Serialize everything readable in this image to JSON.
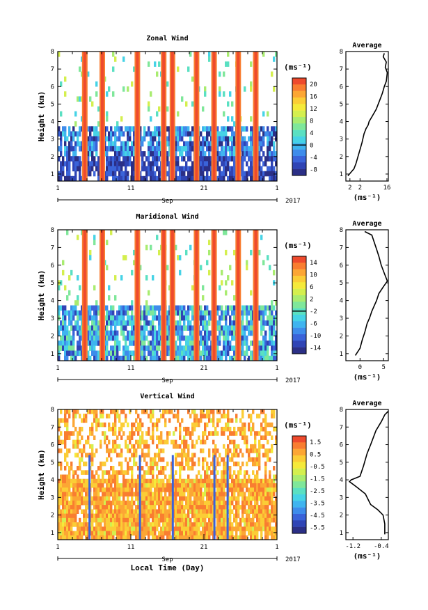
{
  "palette": [
    "#2b2f86",
    "#2f44b5",
    "#3a63d9",
    "#3e8ceb",
    "#3fb4ef",
    "#46d3e6",
    "#5ae0c2",
    "#7fe79a",
    "#a9ec70",
    "#d4ef4e",
    "#f5ea3a",
    "#fbcd36",
    "#fca634",
    "#f97d30",
    "#ee4a2d"
  ],
  "chart_data": [
    {
      "type": "heatmap",
      "title": "Zonal Wind",
      "ylabel": "Height (km)",
      "xlabel": "",
      "xticks": [
        "1",
        "11",
        "21",
        "1"
      ],
      "month_label": "Sep",
      "year_label": "2017",
      "yticks": [
        "1",
        "2",
        "3",
        "4",
        "5",
        "6",
        "7",
        "8"
      ],
      "ylim": [
        0.6,
        8
      ],
      "colorbar": {
        "unit": "(ms⁻¹)",
        "labels": [
          "20",
          "16",
          "12",
          "8",
          "4",
          "0",
          "-4",
          "-8"
        ],
        "line_index": 5
      },
      "average": {
        "title": "Average",
        "xlabel": "(ms⁻¹)",
        "xticks": [
          "2",
          "2",
          "16"
        ],
        "xlim": [
          -5,
          16
        ],
        "profile": [
          [
            -4,
            0.9
          ],
          [
            -1,
            1.3
          ],
          [
            0,
            1.6
          ],
          [
            1,
            2.0
          ],
          [
            2,
            2.4
          ],
          [
            3,
            2.8
          ],
          [
            4,
            3.3
          ],
          [
            5,
            3.6
          ],
          [
            6,
            3.8
          ],
          [
            6.5,
            4.0
          ],
          [
            8,
            4.3
          ],
          [
            10,
            4.7
          ],
          [
            11,
            5.0
          ],
          [
            12,
            5.3
          ],
          [
            13,
            5.6
          ],
          [
            14,
            6.0
          ],
          [
            15,
            6.3
          ],
          [
            15.5,
            6.8
          ],
          [
            14.5,
            7.1
          ],
          [
            15,
            7.4
          ],
          [
            13.5,
            7.7
          ],
          [
            14,
            7.9
          ]
        ]
      }
    },
    {
      "type": "heatmap",
      "title": "Maridional Wind",
      "ylabel": "Height (km)",
      "xlabel": "",
      "xticks": [
        "1",
        "11",
        "21",
        "1"
      ],
      "month_label": "Sep",
      "year_label": "2017",
      "yticks": [
        "1",
        "2",
        "3",
        "4",
        "5",
        "6",
        "7",
        "8"
      ],
      "ylim": [
        0.6,
        8
      ],
      "colorbar": {
        "unit": "(ms⁻¹)",
        "labels": [
          "14",
          "10",
          "6",
          "2",
          "-2",
          "-6",
          "-10",
          "-14"
        ],
        "line_index": 4
      },
      "average": {
        "title": "Average",
        "xlabel": "(ms⁻¹)",
        "xticks": [
          "0",
          "5"
        ],
        "xlim": [
          -3,
          6
        ],
        "profile": [
          [
            -1,
            0.9
          ],
          [
            0,
            1.3
          ],
          [
            0.5,
            1.8
          ],
          [
            1,
            2.2
          ],
          [
            1.5,
            2.7
          ],
          [
            2,
            3.0
          ],
          [
            2.5,
            3.4
          ],
          [
            3,
            3.7
          ],
          [
            3.5,
            4.0
          ],
          [
            4,
            4.4
          ],
          [
            5,
            4.8
          ],
          [
            5.8,
            5.1
          ],
          [
            5.2,
            5.5
          ],
          [
            4.5,
            6.0
          ],
          [
            4,
            6.5
          ],
          [
            3.5,
            6.9
          ],
          [
            3,
            7.3
          ],
          [
            2.5,
            7.7
          ],
          [
            1,
            7.9
          ]
        ]
      }
    },
    {
      "type": "heatmap",
      "title": "Vertical Wind",
      "ylabel": "Height (km)",
      "xlabel": "Local Time (Day)",
      "xticks": [
        "1",
        "11",
        "21",
        "1"
      ],
      "month_label": "Sep",
      "year_label": "2017",
      "yticks": [
        "1",
        "2",
        "3",
        "4",
        "5",
        "6",
        "7",
        "8"
      ],
      "ylim": [
        0.6,
        8
      ],
      "colorbar": {
        "unit": "(ms⁻¹)",
        "labels": [
          "1.5",
          "0.5",
          "-0.5",
          "-1.5",
          "-2.5",
          "-3.5",
          "-4.5",
          "-5.5"
        ],
        "line_index": -1
      },
      "average": {
        "title": "Average",
        "xlabel": "(ms⁻¹)",
        "xticks": [
          "-1.2",
          "-0.4"
        ],
        "xlim": [
          -1.4,
          -0.2
        ],
        "profile": [
          [
            -0.3,
            0.9
          ],
          [
            -0.3,
            1.5
          ],
          [
            -0.35,
            2.0
          ],
          [
            -0.5,
            2.3
          ],
          [
            -0.7,
            2.6
          ],
          [
            -0.75,
            2.8
          ],
          [
            -0.85,
            3.2
          ],
          [
            -1.1,
            3.6
          ],
          [
            -1.3,
            3.9
          ],
          [
            -1.25,
            4.0
          ],
          [
            -1.0,
            4.2
          ],
          [
            -0.9,
            4.8
          ],
          [
            -0.8,
            5.5
          ],
          [
            -0.7,
            6.0
          ],
          [
            -0.55,
            6.8
          ],
          [
            -0.4,
            7.3
          ],
          [
            -0.3,
            7.7
          ],
          [
            -0.2,
            7.9
          ]
        ]
      }
    }
  ]
}
